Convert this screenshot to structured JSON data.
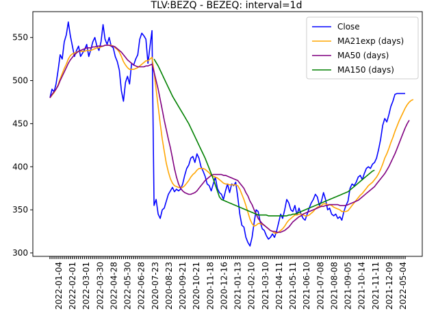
{
  "chart_data": {
    "type": "line",
    "title": "TLV:BEZQ - BEZEQ: interval=1d",
    "xlabel": "",
    "ylabel": "",
    "ylim": [
      296,
      580
    ],
    "yticks": [
      300,
      350,
      400,
      450,
      500,
      550
    ],
    "x_tick_labels": [
      "2022-01-04",
      "2022-02-01",
      "2022-03-01",
      "2022-03-30",
      "2022-04-28",
      "2022-05-30",
      "2022-06-28",
      "2020-07-23",
      "2020-08-23",
      "2020-09-21",
      "2020-10-21",
      "2020-11-18",
      "2020-12-16",
      "2021-01-13",
      "2021-02-10",
      "2021-03-10",
      "2021-04-11",
      "2021-05-11",
      "2021-06-10",
      "2021-07-08",
      "2021-08-08",
      "2021-09-05",
      "2021-10-14",
      "2021-11-11",
      "2021-12-09",
      "2022-05-04"
    ],
    "legend_position": "upper-right",
    "grid": false,
    "series": [
      {
        "name": "Close",
        "color": "#0000ff",
        "values": [
          480,
          490,
          487,
          496,
          512,
          530,
          525,
          545,
          553,
          568,
          552,
          540,
          528,
          535,
          540,
          528,
          532,
          536,
          542,
          528,
          536,
          545,
          550,
          540,
          535,
          545,
          565,
          548,
          542,
          550,
          540,
          538,
          528,
          522,
          512,
          488,
          476,
          498,
          505,
          496,
          520,
          518,
          525,
          530,
          548,
          555,
          552,
          548,
          520,
          540,
          558,
          355,
          362,
          345,
          340,
          350,
          352,
          360,
          368,
          372,
          376,
          371,
          374,
          372,
          374,
          380,
          390,
          398,
          402,
          410,
          412,
          405,
          415,
          410,
          400,
          395,
          389,
          380,
          378,
          372,
          380,
          388,
          375,
          370,
          368,
          362,
          372,
          380,
          370,
          380,
          378,
          382,
          365,
          345,
          332,
          330,
          318,
          312,
          308,
          318,
          335,
          350,
          348,
          336,
          328,
          326,
          320,
          316,
          318,
          322,
          318,
          325,
          335,
          345,
          340,
          350,
          362,
          358,
          350,
          348,
          355,
          344,
          352,
          345,
          340,
          338,
          345,
          352,
          358,
          362,
          368,
          365,
          355,
          360,
          370,
          362,
          350,
          352,
          345,
          343,
          345,
          340,
          342,
          338,
          348,
          355,
          360,
          375,
          380,
          378,
          382,
          388,
          390,
          385,
          392,
          398,
          400,
          398,
          403,
          405,
          410,
          420,
          432,
          448,
          456,
          452,
          460,
          470,
          476,
          484,
          485,
          485,
          485,
          485,
          485
        ]
      },
      {
        "name": "MA21exp (days)",
        "color": "#ffa500",
        "values": [
          480,
          483,
          486,
          490,
          495,
          502,
          508,
          514,
          519,
          525,
          529,
          531,
          532,
          533,
          534,
          534,
          534,
          534,
          535,
          535,
          535,
          536,
          537,
          538,
          538,
          539,
          540,
          541,
          541,
          541,
          541,
          540,
          538,
          536,
          533,
          528,
          522,
          518,
          515,
          513,
          513,
          513,
          514,
          515,
          517,
          519,
          521,
          523,
          523,
          525,
          527,
          510,
          490,
          470,
          450,
          432,
          418,
          404,
          394,
          386,
          381,
          378,
          377,
          376,
          376,
          376,
          378,
          381,
          384,
          388,
          391,
          393,
          396,
          398,
          398,
          398,
          397,
          395,
          393,
          390,
          389,
          388,
          387,
          385,
          383,
          381,
          380,
          380,
          379,
          379,
          379,
          379,
          378,
          374,
          368,
          362,
          355,
          347,
          339,
          334,
          331,
          332,
          334,
          334,
          333,
          332,
          330,
          328,
          326,
          325,
          323,
          323,
          324,
          326,
          328,
          331,
          335,
          338,
          340,
          342,
          344,
          344,
          345,
          345,
          344,
          343,
          343,
          344,
          346,
          348,
          351,
          353,
          354,
          355,
          357,
          357,
          356,
          356,
          355,
          353,
          352,
          351,
          350,
          348,
          348,
          348,
          349,
          352,
          355,
          358,
          361,
          364,
          367,
          369,
          372,
          375,
          378,
          380,
          382,
          385,
          388,
          392,
          397,
          403,
          410,
          415,
          421,
          428,
          434,
          441,
          447,
          453,
          458,
          463,
          468,
          472,
          475,
          477,
          478
        ]
      },
      {
        "name": "MA50 (days)",
        "color": "#800080",
        "values": [
          480,
          484,
          487,
          490,
          494,
          500,
          505,
          510,
          515,
          520,
          524,
          527,
          530,
          532,
          534,
          535,
          536,
          537,
          538,
          538,
          538,
          539,
          539,
          540,
          540,
          540,
          540,
          541,
          541,
          541,
          540,
          540,
          539,
          537,
          535,
          533,
          530,
          527,
          524,
          522,
          520,
          518,
          517,
          516,
          516,
          516,
          516,
          517,
          517,
          518,
          519,
          510,
          500,
          490,
          478,
          466,
          454,
          443,
          432,
          422,
          410,
          398,
          388,
          380,
          375,
          372,
          370,
          369,
          368,
          368,
          369,
          370,
          372,
          375,
          378,
          381,
          384,
          386,
          388,
          390,
          391,
          391,
          391,
          391,
          391,
          390,
          390,
          389,
          388,
          387,
          386,
          385,
          384,
          381,
          378,
          375,
          370,
          366,
          360,
          356,
          350,
          345,
          340,
          337,
          334,
          332,
          330,
          328,
          326,
          325,
          325,
          324,
          324,
          324,
          325,
          326,
          328,
          330,
          333,
          336,
          338,
          340,
          342,
          343,
          345,
          346,
          347,
          348,
          349,
          350,
          351,
          352,
          353,
          354,
          354,
          355,
          355,
          356,
          356,
          356,
          356,
          356,
          355,
          355,
          355,
          355,
          356,
          357,
          358,
          359,
          360,
          361,
          363,
          365,
          367,
          369,
          371,
          373,
          375,
          377,
          380,
          383,
          386,
          389,
          392,
          396,
          400,
          405,
          410,
          415,
          421,
          427,
          433,
          439,
          445,
          450,
          454
        ]
      },
      {
        "name": "MA150 (days)",
        "color": "#008000",
        "values": [
          null,
          null,
          null,
          null,
          null,
          null,
          null,
          null,
          null,
          null,
          null,
          null,
          null,
          null,
          null,
          null,
          null,
          null,
          null,
          null,
          null,
          null,
          null,
          null,
          null,
          null,
          null,
          null,
          null,
          null,
          null,
          null,
          null,
          null,
          null,
          null,
          null,
          null,
          null,
          null,
          null,
          null,
          null,
          null,
          null,
          null,
          null,
          null,
          null,
          null,
          null,
          525,
          521,
          517,
          512,
          507,
          502,
          497,
          492,
          487,
          482,
          478,
          474,
          470,
          466,
          462,
          458,
          454,
          450,
          445,
          440,
          435,
          430,
          425,
          420,
          415,
          410,
          404,
          398,
          392,
          386,
          379,
          372,
          365,
          362,
          361,
          360,
          359,
          358,
          357,
          356,
          355,
          354,
          353,
          352,
          351,
          350,
          349,
          348,
          347,
          346,
          345,
          344,
          344,
          344,
          344,
          344,
          343,
          343,
          343,
          343,
          343,
          343,
          343,
          343,
          343,
          343,
          344,
          344,
          345,
          345,
          346,
          347,
          348,
          349,
          350,
          351,
          352,
          353,
          354,
          355,
          356,
          357,
          358,
          359,
          360,
          361,
          362,
          363,
          364,
          365,
          366,
          367,
          368,
          369,
          370,
          371,
          373,
          375,
          377,
          379,
          381,
          383,
          385,
          387,
          389,
          391,
          393,
          395,
          396
        ]
      }
    ]
  }
}
